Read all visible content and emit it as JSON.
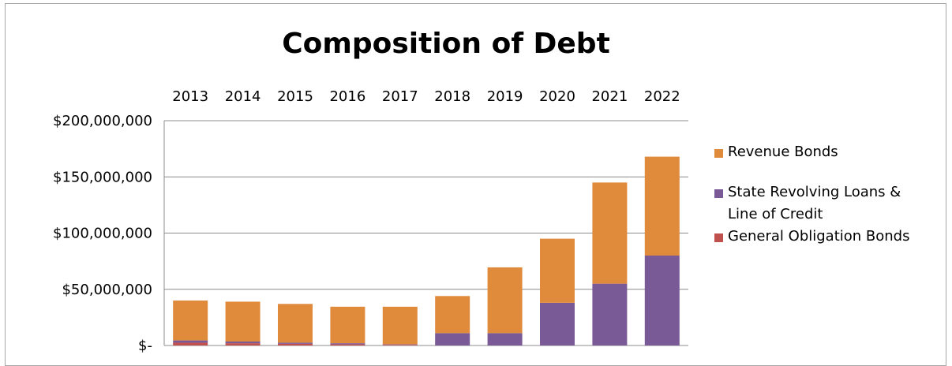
{
  "chart_data": {
    "type": "bar",
    "stacked": true,
    "title": "Composition of Debt",
    "xlabel": "",
    "ylabel": "",
    "categories": [
      "2013",
      "2014",
      "2015",
      "2016",
      "2017",
      "2018",
      "2019",
      "2020",
      "2021",
      "2022"
    ],
    "series": [
      {
        "name": "General Obligation Bonds",
        "color": "#c0504d",
        "values": [
          2500000,
          2000000,
          1500000,
          1000000,
          500000,
          0,
          0,
          0,
          0,
          0
        ]
      },
      {
        "name": "State Revolving Loans & Line of Credit",
        "color": "#7a5a96",
        "values": [
          2000000,
          1500000,
          1000000,
          1000000,
          500000,
          11000000,
          11000000,
          38000000,
          55000000,
          80000000
        ]
      },
      {
        "name": "Revenue Bonds",
        "color": "#e08a3c",
        "values": [
          35500000,
          35500000,
          34500000,
          32500000,
          33500000,
          33000000,
          58500000,
          57000000,
          90000000,
          88000000
        ]
      }
    ],
    "yticks": [
      "$200,000,000",
      "$150,000,000",
      "$100,000,000",
      "$50,000,000",
      "$-"
    ],
    "ylim": [
      0,
      200000000
    ],
    "legend_order": [
      "Revenue Bonds",
      "State Revolving Loans & Line of Credit",
      "General Obligation Bonds"
    ],
    "legend_position": "right",
    "x_axis_position": "top",
    "grid": true
  }
}
